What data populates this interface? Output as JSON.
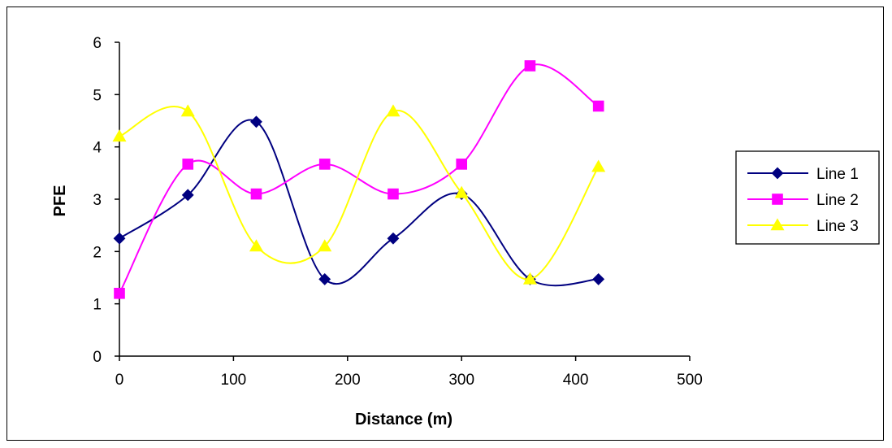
{
  "chart_data": {
    "type": "line",
    "xlabel": "Distance (m)",
    "ylabel": "PFE",
    "xlim": [
      0,
      500
    ],
    "ylim": [
      0,
      6
    ],
    "x_ticks": [
      "0",
      "100",
      "200",
      "300",
      "400",
      "500"
    ],
    "y_ticks": [
      "0",
      "1",
      "2",
      "3",
      "4",
      "5",
      "6"
    ],
    "grid": false,
    "smoothed": true,
    "legend_position": "right",
    "series": [
      {
        "name": "Line 1",
        "color": "#000080",
        "marker": "diamond",
        "x": [
          0,
          60,
          120,
          180,
          240,
          300,
          360,
          420
        ],
        "y": [
          2.25,
          3.08,
          4.48,
          1.47,
          2.25,
          3.1,
          1.47,
          1.47
        ]
      },
      {
        "name": "Line 2",
        "color": "#ff00ff",
        "marker": "square",
        "x": [
          0,
          60,
          120,
          180,
          240,
          300,
          360,
          420
        ],
        "y": [
          1.2,
          3.67,
          3.1,
          3.67,
          3.1,
          3.67,
          5.55,
          4.78
        ]
      },
      {
        "name": "Line 3",
        "color": "#ffff00",
        "marker": "triangle",
        "x": [
          0,
          60,
          120,
          180,
          240,
          300,
          360,
          420
        ],
        "y": [
          4.2,
          4.68,
          2.1,
          2.1,
          4.68,
          3.12,
          1.47,
          3.62
        ]
      }
    ]
  }
}
